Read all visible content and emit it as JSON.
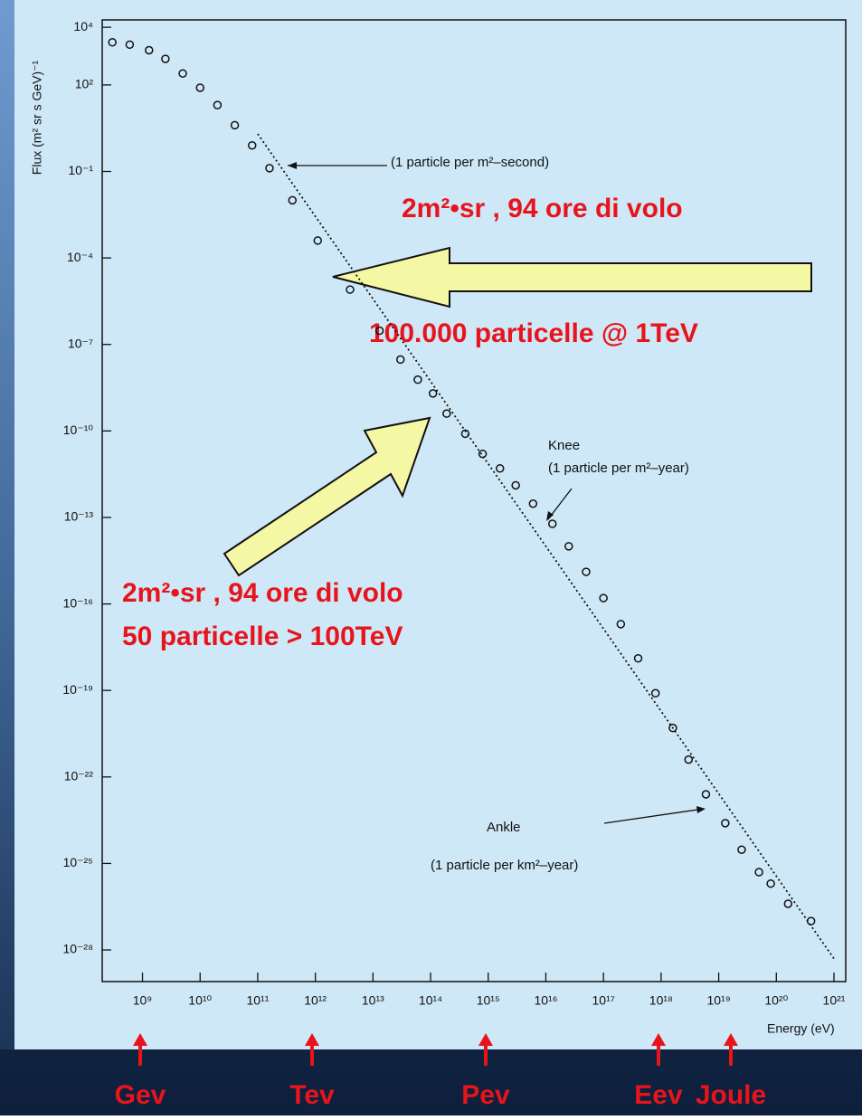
{
  "chart_data": {
    "type": "scatter",
    "x_label": "Energy (eV)",
    "y_label": "Flux (m² sr s GeV)⁻¹",
    "log_scale": true,
    "xlim": [
      200000000.0,
      1.6e+21
    ],
    "ylim": [
      8e-30,
      18000.0
    ],
    "xticks": [
      {
        "value": 1000000000.0,
        "label": "10⁹"
      },
      {
        "value": 10000000000.0,
        "label": "10¹⁰"
      },
      {
        "value": 100000000000.0,
        "label": "10¹¹"
      },
      {
        "value": 1000000000000.0,
        "label": "10¹²"
      },
      {
        "value": 10000000000000.0,
        "label": "10¹³"
      },
      {
        "value": 100000000000000.0,
        "label": "10¹⁴"
      },
      {
        "value": 1000000000000000.0,
        "label": "10¹⁵"
      },
      {
        "value": 1e+16,
        "label": "10¹⁶"
      },
      {
        "value": 1e+17,
        "label": "10¹⁷"
      },
      {
        "value": 1e+18,
        "label": "10¹⁸"
      },
      {
        "value": 1e+19,
        "label": "10¹⁹"
      },
      {
        "value": 1e+20,
        "label": "10²⁰"
      },
      {
        "value": 1e+21,
        "label": "10²¹"
      }
    ],
    "yticks": [
      {
        "value": 10000.0,
        "label": "10⁴"
      },
      {
        "value": 100.0,
        "label": "10²"
      },
      {
        "value": 0.1,
        "label": "10⁻¹"
      },
      {
        "value": 0.0001,
        "label": "10⁻⁴"
      },
      {
        "value": 1e-07,
        "label": "10⁻⁷"
      },
      {
        "value": 1e-10,
        "label": "10⁻¹⁰"
      },
      {
        "value": 1e-13,
        "label": "10⁻¹³"
      },
      {
        "value": 1e-16,
        "label": "10⁻¹⁶"
      },
      {
        "value": 1e-19,
        "label": "10⁻¹⁹"
      },
      {
        "value": 1e-22,
        "label": "10⁻²²"
      },
      {
        "value": 1e-25,
        "label": "10⁻²⁵"
      },
      {
        "value": 1e-28,
        "label": "10⁻²⁸"
      }
    ],
    "series": [
      {
        "color": "#111111",
        "marker": "open",
        "x": [
          300000000.0,
          600000000.0,
          1300000000.0,
          2500000000.0,
          5000000000.0,
          10000000000.0,
          20000000000.0,
          40000000000.0,
          80000000000.0,
          160000000000.0,
          400000000000.0,
          1100000000000.0,
          4000000000000.0,
          13000000000000.0,
          30000000000000.0,
          60000000000000.0,
          110000000000000.0,
          190000000000000.0,
          400000000000000.0,
          800000000000000.0,
          1600000000000000.0,
          3000000000000000.0,
          6000000000000000.0,
          1.3e+16,
          2.5e+16,
          5e+16,
          1e+17,
          2e+17,
          4e+17,
          8e+17,
          1.6e+18,
          3e+18,
          6e+18,
          1.3e+19,
          2.5e+19,
          5e+19,
          8e+19,
          1.6e+20,
          4e+20
        ],
        "values": [
          3000.0,
          2500.0,
          1600.0,
          800.0,
          250.0,
          80.0,
          20.0,
          4,
          0.8,
          0.13,
          0.01,
          0.0004,
          8e-06,
          3e-07,
          3e-08,
          6e-09,
          2e-09,
          4e-10,
          8e-11,
          1.6e-11,
          5e-12,
          1.3e-12,
          3e-13,
          6e-14,
          1e-14,
          1.3e-15,
          1.6e-16,
          2e-17,
          1.3e-18,
          8e-20,
          5e-21,
          4e-22,
          2.5e-23,
          2.5e-24,
          3e-25,
          5e-26,
          2e-26,
          4e-27,
          1e-27
        ]
      },
      {
        "color": "#111111",
        "marker": "dotted-line",
        "x": [
          100000000000.0,
          1e+21
        ],
        "values": [
          2,
          5e-29
        ]
      }
    ],
    "annotations": [
      "(1 particle per m²–second)",
      "2m²•sr , 94 ore di volo",
      "100.000 particelle @ 1TeV",
      "Knee",
      "(1 particle per m²–year)",
      "2m²•sr , 94 ore di volo",
      "50 particelle > 100TeV",
      "Ankle",
      "(1 particle per km²–year)"
    ],
    "bottom_labels": [
      "Gev",
      "Tev",
      "Pev",
      "Eev",
      "Joule"
    ]
  }
}
